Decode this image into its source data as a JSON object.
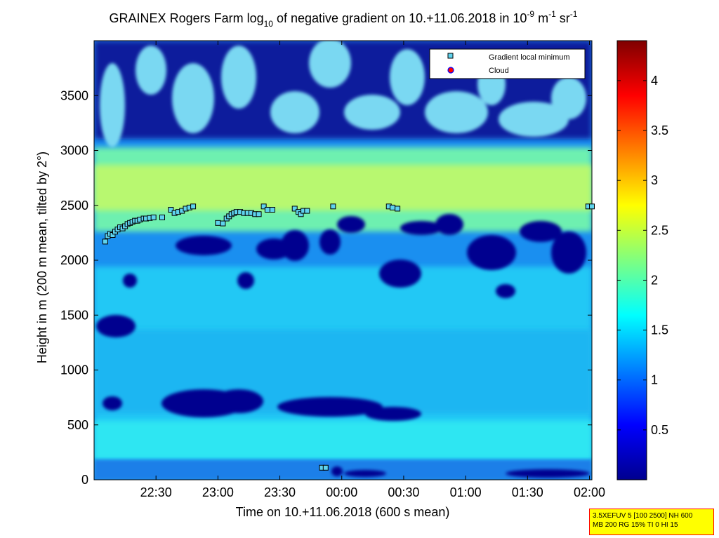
{
  "title": {
    "part1": "GRAINEX Rogers Farm log",
    "sub1": "10",
    "part2": " of negative gradient on 10.+11.06.2018 in 10",
    "sup1": "-9",
    "part3": " m",
    "sup2": "-1",
    "part4": " sr",
    "sup3": "-1"
  },
  "params": {
    "line1": "3.5XEFUV 5 [100 2500] NH 600",
    "line2": "MB 200 RG 15% TI 0 HI 15"
  },
  "colors": {
    "low": "#00008f",
    "mid": "#00ffff",
    "high": "#ffff00",
    "top": "#7f0000",
    "marker_fill": "#5fd3ee",
    "cloud_fill": "#ff0000"
  },
  "chart_data": {
    "type": "heatmap",
    "xlabel": "Time on 10.+11.06.2018 (600 s mean)",
    "ylabel": "Height in m (200 m mean, tilted by 2°)",
    "x_ticks": [
      "22:30",
      "23:00",
      "23:30",
      "00:00",
      "00:30",
      "01:00",
      "01:30",
      "02:00"
    ],
    "x_tick_hours": [
      22.5,
      23.0,
      23.5,
      24.0,
      24.5,
      25.0,
      25.5,
      26.0
    ],
    "xlim_hours": [
      22.0,
      26.02
    ],
    "y_ticks": [
      0,
      500,
      1000,
      1500,
      2000,
      2500,
      3000,
      3500
    ],
    "ylim": [
      0,
      4000
    ],
    "colorbar": {
      "ticks": [
        0.5,
        1,
        1.5,
        2,
        2.5,
        3,
        3.5,
        4
      ],
      "range": [
        0,
        4.4
      ]
    },
    "legend": {
      "position": "top-right",
      "entries": [
        {
          "label": "Gradient local minimum",
          "marker": "square"
        },
        {
          "label": "Cloud",
          "marker": "circle"
        }
      ]
    },
    "series": [
      {
        "name": "Gradient local minimum",
        "points": [
          [
            22.09,
            2170
          ],
          [
            22.11,
            2220
          ],
          [
            22.13,
            2240
          ],
          [
            22.15,
            2230
          ],
          [
            22.17,
            2260
          ],
          [
            22.19,
            2280
          ],
          [
            22.21,
            2300
          ],
          [
            22.23,
            2290
          ],
          [
            22.25,
            2310
          ],
          [
            22.27,
            2330
          ],
          [
            22.29,
            2340
          ],
          [
            22.31,
            2350
          ],
          [
            22.33,
            2360
          ],
          [
            22.35,
            2360
          ],
          [
            22.37,
            2370
          ],
          [
            22.4,
            2380
          ],
          [
            22.42,
            2380
          ],
          [
            22.45,
            2385
          ],
          [
            22.48,
            2390
          ],
          [
            22.55,
            2390
          ],
          [
            22.62,
            2460
          ],
          [
            22.65,
            2430
          ],
          [
            22.68,
            2440
          ],
          [
            22.71,
            2450
          ],
          [
            22.74,
            2470
          ],
          [
            22.77,
            2480
          ],
          [
            22.8,
            2490
          ],
          [
            23.0,
            2340
          ],
          [
            23.04,
            2335
          ],
          [
            23.07,
            2380
          ],
          [
            23.09,
            2400
          ],
          [
            23.11,
            2420
          ],
          [
            23.13,
            2430
          ],
          [
            23.15,
            2440
          ],
          [
            23.18,
            2440
          ],
          [
            23.21,
            2430
          ],
          [
            23.24,
            2430
          ],
          [
            23.27,
            2430
          ],
          [
            23.3,
            2420
          ],
          [
            23.33,
            2420
          ],
          [
            23.37,
            2490
          ],
          [
            23.4,
            2460
          ],
          [
            23.44,
            2460
          ],
          [
            23.62,
            2470
          ],
          [
            23.65,
            2440
          ],
          [
            23.67,
            2420
          ],
          [
            23.69,
            2450
          ],
          [
            23.72,
            2450
          ],
          [
            23.93,
            2490
          ],
          [
            24.38,
            2490
          ],
          [
            24.41,
            2480
          ],
          [
            24.45,
            2470
          ],
          [
            25.99,
            2490
          ],
          [
            26.02,
            2490
          ],
          [
            26.05,
            2490
          ],
          [
            23.84,
            110
          ],
          [
            23.87,
            110
          ]
        ]
      }
    ]
  }
}
